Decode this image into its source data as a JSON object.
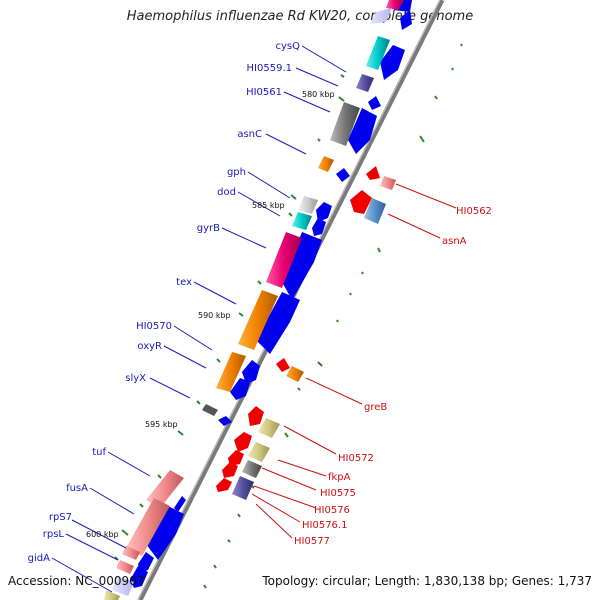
{
  "title": "Haemophilus influenzae Rd KW20, complete genome",
  "footer": {
    "accession": "Accession: NC_000907",
    "summary": "Topology: circular; Length: 1,830,138 bp; Genes: 1,737"
  },
  "colors": {
    "backbone": "#7a7a7a",
    "forward_cds": "#0000ee",
    "reverse_cds": "#ee0000",
    "left_labels": "#1a1ab8",
    "right_labels": "#cc1111",
    "tick_marks": "#2a8a2a"
  },
  "scale_labels": [
    "580 kbp",
    "585 kbp",
    "590 kbp",
    "595 kbp",
    "600 kbp"
  ],
  "left_genes": [
    "cysQ",
    "HI0559.1",
    "HI0561",
    "asnC",
    "gph",
    "dod",
    "gyrB",
    "tex",
    "HI0570",
    "oxyR",
    "slyX",
    "tuf",
    "fusA",
    "rpS7",
    "rpsL",
    "gidA"
  ],
  "right_genes": [
    "HI0562",
    "asnA",
    "greB",
    "HI0572",
    "fkpA",
    "HI0575",
    "HI0576",
    "HI0576.1",
    "HI0577"
  ]
}
